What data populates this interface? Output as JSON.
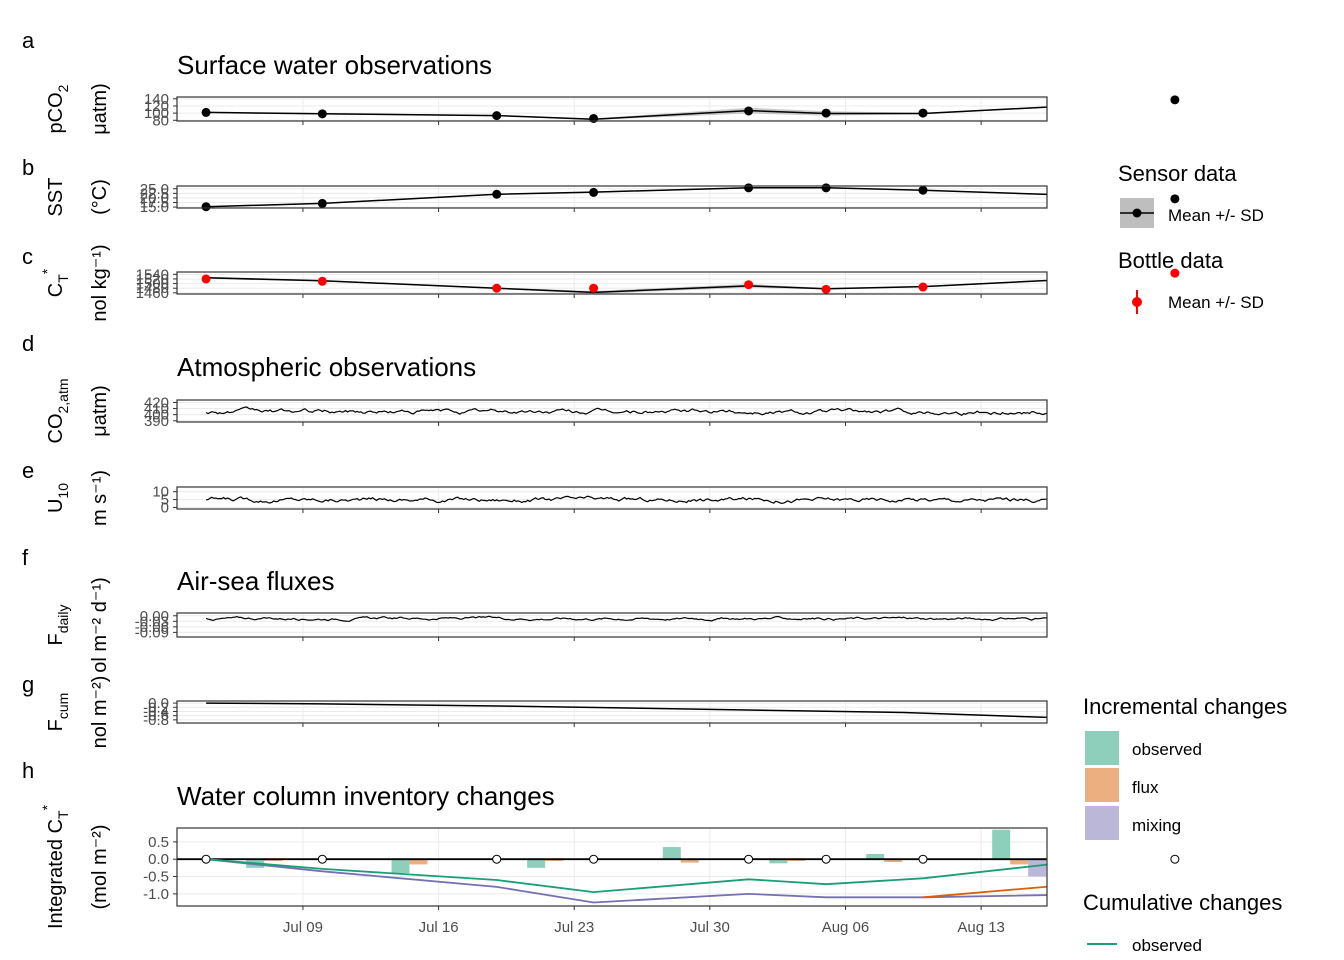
{
  "panel_letters": [
    "a",
    "b",
    "c",
    "d",
    "e",
    "f",
    "g",
    "h"
  ],
  "section_titles": {
    "surface": "Surface water observations",
    "atmos": "Atmospheric observations",
    "flux": "Air-sea fluxes",
    "inventory": "Water column inventory changes"
  },
  "x_axis": {
    "ticks": [
      "Jul 09",
      "Jul 16",
      "Jul 23",
      "Jul 30",
      "Aug 06",
      "Aug 13"
    ],
    "tick_days": [
      9,
      16,
      23,
      30,
      37,
      44
    ],
    "range_days": [
      2.5,
      47.4
    ]
  },
  "legends": {
    "sensor": {
      "title": "Sensor data",
      "item": "Mean +/- SD"
    },
    "bottle": {
      "title": "Bottle data",
      "item": "Mean +/- SD"
    },
    "incremental": {
      "title": "Incremental changes",
      "items": [
        "observed",
        "flux",
        "mixing"
      ]
    },
    "cumulative": {
      "title": "Cumulative changes",
      "items": [
        "observed"
      ]
    }
  },
  "colors": {
    "observed": "#1b9e77",
    "flux": "#d95f02",
    "mixing": "#7570b3",
    "observed_fill": "#8ecfbb",
    "flux_fill": "#ecaf80",
    "mixing_fill": "#bab7d9",
    "bottle": "#ff0000",
    "sensor": "#000000",
    "sd_band": "#bebebe"
  },
  "chart_data": [
    {
      "id": "pco2",
      "type": "line",
      "ylabel_main": "pCO",
      "ylabel_sub": "2",
      "ylabel_unit": "μatm)",
      "yticks": [
        "140",
        "120",
        "100",
        "80"
      ],
      "ytick_values": [
        140,
        120,
        100,
        80
      ],
      "ylim": [
        78,
        145
      ],
      "x": [
        4,
        10,
        19,
        24,
        32,
        36,
        41,
        55
      ],
      "y": [
        102,
        98,
        93,
        83,
        107,
        99,
        99,
        138
      ],
      "points_x": [
        4,
        10,
        19,
        24,
        32,
        36,
        41,
        54
      ],
      "points_y": [
        102,
        98,
        93,
        85,
        106,
        100,
        100,
        137
      ],
      "sd": [
        2,
        2,
        2,
        2,
        8,
        6,
        2,
        2
      ],
      "marker": "sensor"
    },
    {
      "id": "sst",
      "type": "line",
      "ylabel_main": "SST",
      "ylabel_sub": "",
      "ylabel_unit": "(°C)",
      "yticks": [
        "25.0",
        "22.5",
        "20.0",
        "17.5",
        "15.0"
      ],
      "ytick_values": [
        25,
        22.5,
        20,
        17.5,
        15
      ],
      "ylim": [
        14.5,
        26.5
      ],
      "x": [
        4,
        10,
        19,
        24,
        32,
        36,
        41,
        55
      ],
      "y": [
        15.2,
        17.0,
        22.0,
        23.2,
        25.5,
        25.6,
        24.2,
        19.2
      ],
      "points_x": [
        4,
        10,
        19,
        24,
        32,
        36,
        41,
        54
      ],
      "points_y": [
        15.2,
        17.0,
        22.0,
        23.0,
        25.5,
        25.5,
        24.2,
        19.5
      ],
      "sd": [
        0.3,
        0.3,
        0.3,
        0.3,
        0.4,
        0.3,
        0.3,
        0.3
      ],
      "marker": "sensor"
    },
    {
      "id": "ct",
      "type": "line",
      "ylabel_main": "C",
      "ylabel_sub": "T",
      "ylabel_sup": "*",
      "ylabel_unit": "nol kg⁻¹)",
      "yticks": [
        "1540",
        "1520",
        "1500",
        "1480",
        "1460"
      ],
      "ytick_values": [
        1540,
        1520,
        1500,
        1480,
        1460
      ],
      "ylim": [
        1455,
        1550
      ],
      "x": [
        4,
        10,
        19,
        24,
        32,
        36,
        41,
        55
      ],
      "y": [
        1525,
        1512,
        1480,
        1462,
        1490,
        1478,
        1487,
        1545
      ],
      "points_x": [
        4,
        10,
        19,
        24,
        32,
        36,
        41,
        54
      ],
      "points_y": [
        1520,
        1510,
        1480,
        1480,
        1495,
        1475,
        1485,
        1545
      ],
      "sd": [
        5,
        3,
        3,
        6,
        8,
        3,
        3,
        3
      ],
      "marker": "bottle"
    },
    {
      "id": "co2atm",
      "type": "line",
      "ylabel_main": "CO",
      "ylabel_sub": "2,atm",
      "ylabel_unit": "μatm)",
      "yticks": [
        "420",
        "410",
        "400",
        "390"
      ],
      "ytick_values": [
        420,
        410,
        400,
        390
      ],
      "ylim": [
        388,
        424
      ],
      "series_gen": {
        "from": 4,
        "to": 54,
        "step": 0.1,
        "base": 405,
        "amp": 5,
        "min": 391,
        "max": 420
      }
    },
    {
      "id": "u10",
      "type": "line",
      "ylabel_main": "U",
      "ylabel_sub": "10",
      "ylabel_unit": "m s⁻¹)",
      "yticks": [
        "10",
        "5",
        "0"
      ],
      "ytick_values": [
        10,
        5,
        0
      ],
      "ylim": [
        -1,
        13
      ],
      "series_gen": {
        "from": 4,
        "to": 54,
        "step": 0.1,
        "base": 5,
        "amp": 2,
        "min": 0.5,
        "max": 12
      }
    },
    {
      "id": "fdaily",
      "type": "line",
      "ylabel_main": "F",
      "ylabel_sub": "daily",
      "ylabel_unit": "ol m⁻² d⁻¹)",
      "yticks": [
        "0.00",
        "-0.03",
        "-0.06",
        "-0.09"
      ],
      "ytick_values": [
        0,
        -0.03,
        -0.06,
        -0.09
      ],
      "ylim": [
        -0.115,
        0.015
      ],
      "series_gen": {
        "from": 4,
        "to": 54,
        "step": 0.1,
        "base": -0.015,
        "amp": 0.01,
        "min": -0.1,
        "max": 0.005
      }
    },
    {
      "id": "fcum",
      "type": "line",
      "ylabel_main": "F",
      "ylabel_sub": "cum",
      "ylabel_unit": "nol m⁻²)",
      "yticks": [
        "0.0",
        "-0.2",
        "-0.4",
        "-0.6",
        "-0.8"
      ],
      "ytick_values": [
        0,
        -0.2,
        -0.4,
        -0.6,
        -0.8
      ],
      "ylim": [
        -0.95,
        0.1
      ],
      "x": [
        4,
        10,
        20,
        30,
        40,
        48,
        54
      ],
      "y": [
        0,
        -0.04,
        -0.15,
        -0.3,
        -0.45,
        -0.7,
        -0.85
      ]
    },
    {
      "id": "inventory",
      "type": "bar",
      "ylabel_main": "Integrated C",
      "ylabel_sub": "T",
      "ylabel_sup": "*",
      "ylabel_unit": "(mol m⁻²)",
      "yticks": [
        "0.5",
        "0.0",
        "-0.5",
        "-1.0"
      ],
      "ytick_values": [
        0.5,
        0,
        -0.5,
        -1.0
      ],
      "ylim": [
        -1.35,
        0.9
      ],
      "bars": [
        {
          "x": 7.0,
          "observed": -0.25,
          "flux": -0.05
        },
        {
          "x": 14.5,
          "observed": -0.4,
          "flux": -0.15
        },
        {
          "x": 21.5,
          "observed": -0.25,
          "flux": -0.05
        },
        {
          "x": 28.5,
          "observed": 0.35,
          "flux": -0.1
        },
        {
          "x": 34.0,
          "observed": -0.12,
          "flux": -0.05
        },
        {
          "x": 39.0,
          "observed": 0.15,
          "flux": -0.08
        },
        {
          "x": 45.5,
          "observed": 0.85,
          "flux": -0.15,
          "mixing": -0.5
        }
      ],
      "cum_x": [
        4,
        10,
        19,
        24,
        32,
        36,
        41,
        54
      ],
      "cum_observed": [
        0,
        -0.28,
        -0.6,
        -0.95,
        -0.58,
        -0.72,
        -0.55,
        0.25
      ],
      "cum_flux": [
        null,
        null,
        null,
        null,
        null,
        null,
        -1.1,
        -0.48
      ],
      "cum_mixing": [
        0,
        -0.35,
        -0.8,
        -1.25,
        -1.0,
        -1.1,
        -1.1,
        -0.97
      ],
      "markers_x": [
        4,
        10,
        19,
        24,
        32,
        36,
        41,
        54
      ]
    }
  ]
}
